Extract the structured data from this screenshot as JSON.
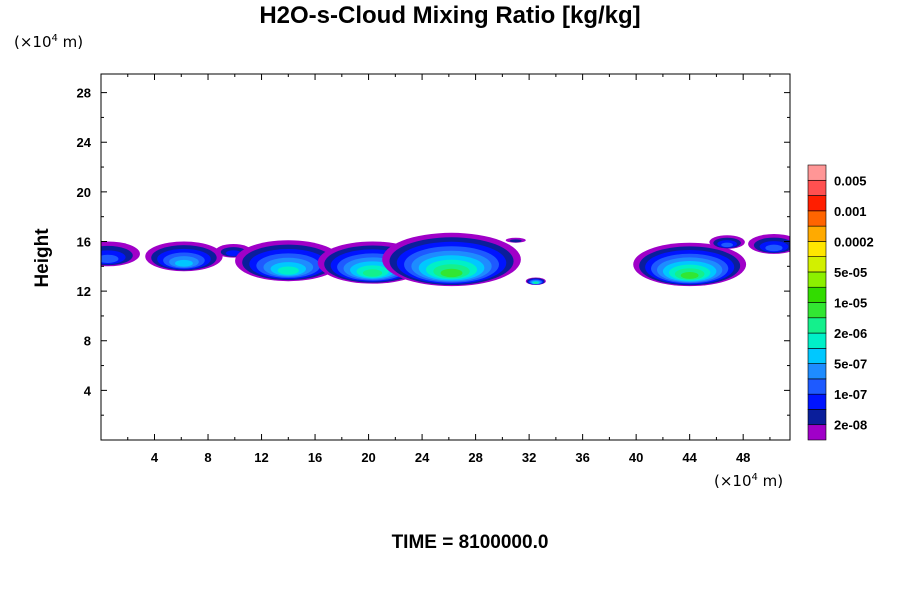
{
  "chart_data": {
    "type": "heatmap",
    "title": "H2O-s-Cloud Mixing Ratio [kg/kg]",
    "xlabel": "",
    "ylabel": "Height",
    "x_unit": "(×10⁴ m)",
    "y_unit": "(×10⁴ m)",
    "xlim": [
      0,
      51.5
    ],
    "ylim": [
      0,
      29.5
    ],
    "x_ticks": [
      "4",
      "8",
      "12",
      "16",
      "20",
      "24",
      "28",
      "32",
      "36",
      "40",
      "44",
      "48"
    ],
    "y_ticks": [
      "4",
      "8",
      "12",
      "16",
      "20",
      "24",
      "28"
    ],
    "colorbar": {
      "labels": [
        "0.005",
        "0.001",
        "0.0002",
        "5e-05",
        "1e-05",
        "2e-06",
        "5e-07",
        "1e-07",
        "2e-08"
      ],
      "colors": [
        "#a000c8",
        "#0a1e9b",
        "#0014ff",
        "#1e5aff",
        "#1e8cff",
        "#00c8ff",
        "#00f0c8",
        "#14f08c",
        "#32e632",
        "#32dc00",
        "#8cf000",
        "#d2f000",
        "#ffe600",
        "#ffaa00",
        "#ff6400",
        "#ff1e00",
        "#ff5050",
        "#ff9696"
      ]
    },
    "clouds": [
      {
        "x": 0.5,
        "top": 16.0,
        "bottom": 14.0,
        "peak": 3
      },
      {
        "x": 6.2,
        "top": 16.0,
        "bottom": 13.6,
        "peak": 5
      },
      {
        "x": 9.9,
        "top": 15.8,
        "bottom": 14.7,
        "peak": 2
      },
      {
        "x": 14.0,
        "top": 16.1,
        "bottom": 12.8,
        "peak": 6
      },
      {
        "x": 20.3,
        "top": 16.0,
        "bottom": 12.6,
        "peak": 7
      },
      {
        "x": 26.2,
        "top": 16.7,
        "bottom": 12.4,
        "peak": 8
      },
      {
        "x": 31.0,
        "top": 16.3,
        "bottom": 15.9,
        "peak": 1
      },
      {
        "x": 32.5,
        "top": 13.1,
        "bottom": 12.5,
        "peak": 7
      },
      {
        "x": 44.0,
        "top": 15.9,
        "bottom": 12.4,
        "peak": 8
      },
      {
        "x": 46.8,
        "top": 16.5,
        "bottom": 15.4,
        "peak": 3
      },
      {
        "x": 50.3,
        "top": 16.6,
        "bottom": 15.0,
        "peak": 3
      }
    ]
  },
  "footer": {
    "time_label": "TIME = 8100000.0"
  }
}
